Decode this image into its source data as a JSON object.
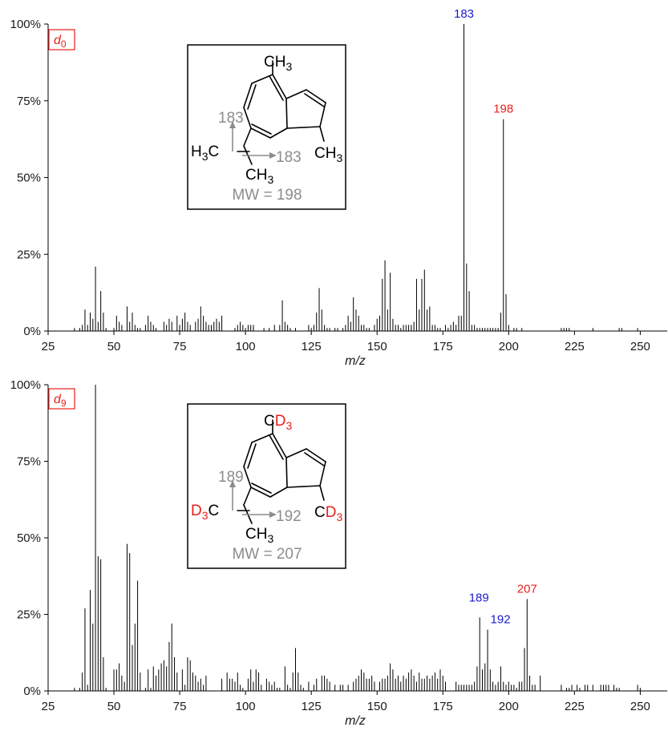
{
  "chart_data": [
    {
      "type": "bar",
      "panel_tag": "d",
      "panel_tag_sub": "0",
      "xlabel": "m/z",
      "xlim": [
        25,
        260
      ],
      "ylim": [
        0,
        100
      ],
      "xticks": [
        "25",
        "50",
        "75",
        "100",
        "125",
        "150",
        "175",
        "200",
        "225",
        "250"
      ],
      "yticks": [
        "0%",
        "25%",
        "50%",
        "75%",
        "100%"
      ],
      "grid": false,
      "peak_labels": [
        {
          "text": "183",
          "x": 183,
          "color": "#1a1ad0"
        },
        {
          "text": "198",
          "x": 198,
          "color": "#e8201c"
        }
      ],
      "points": [
        [
          35,
          1
        ],
        [
          37,
          1
        ],
        [
          38,
          2
        ],
        [
          39,
          7
        ],
        [
          40,
          2
        ],
        [
          41,
          6
        ],
        [
          42,
          4
        ],
        [
          43,
          21
        ],
        [
          44,
          3
        ],
        [
          45,
          13
        ],
        [
          46,
          6
        ],
        [
          47,
          1
        ],
        [
          50,
          1
        ],
        [
          51,
          5
        ],
        [
          52,
          3
        ],
        [
          53,
          2
        ],
        [
          55,
          8
        ],
        [
          56,
          3
        ],
        [
          57,
          6
        ],
        [
          58,
          2
        ],
        [
          59,
          1
        ],
        [
          60,
          1
        ],
        [
          62,
          2
        ],
        [
          63,
          5
        ],
        [
          64,
          3
        ],
        [
          65,
          2
        ],
        [
          66,
          1
        ],
        [
          69,
          3
        ],
        [
          70,
          2
        ],
        [
          71,
          4
        ],
        [
          72,
          3
        ],
        [
          74,
          5
        ],
        [
          75,
          2
        ],
        [
          76,
          4
        ],
        [
          77,
          6
        ],
        [
          78,
          3
        ],
        [
          79,
          2
        ],
        [
          81,
          3
        ],
        [
          82,
          4
        ],
        [
          83,
          8
        ],
        [
          84,
          5
        ],
        [
          85,
          3
        ],
        [
          86,
          2
        ],
        [
          87,
          2
        ],
        [
          88,
          3
        ],
        [
          89,
          4
        ],
        [
          90,
          3
        ],
        [
          91,
          5
        ],
        [
          96,
          1
        ],
        [
          97,
          2
        ],
        [
          98,
          3
        ],
        [
          99,
          2
        ],
        [
          100,
          1
        ],
        [
          101,
          2
        ],
        [
          102,
          2
        ],
        [
          103,
          2
        ],
        [
          107,
          1
        ],
        [
          109,
          1
        ],
        [
          111,
          2
        ],
        [
          113,
          2
        ],
        [
          114,
          10
        ],
        [
          115,
          3
        ],
        [
          116,
          2
        ],
        [
          117,
          1
        ],
        [
          119,
          1
        ],
        [
          124,
          2
        ],
        [
          125,
          1
        ],
        [
          126,
          2
        ],
        [
          127,
          6
        ],
        [
          128,
          14
        ],
        [
          129,
          7
        ],
        [
          130,
          2
        ],
        [
          131,
          1
        ],
        [
          132,
          1
        ],
        [
          134,
          1
        ],
        [
          135,
          1
        ],
        [
          137,
          1
        ],
        [
          138,
          2
        ],
        [
          139,
          5
        ],
        [
          140,
          3
        ],
        [
          141,
          11
        ],
        [
          142,
          7
        ],
        [
          143,
          5
        ],
        [
          144,
          2
        ],
        [
          145,
          2
        ],
        [
          146,
          1
        ],
        [
          147,
          1
        ],
        [
          149,
          2
        ],
        [
          150,
          4
        ],
        [
          151,
          5
        ],
        [
          152,
          17
        ],
        [
          153,
          23
        ],
        [
          154,
          7
        ],
        [
          155,
          19
        ],
        [
          156,
          4
        ],
        [
          157,
          2
        ],
        [
          158,
          2
        ],
        [
          159,
          1
        ],
        [
          160,
          2
        ],
        [
          161,
          2
        ],
        [
          162,
          2
        ],
        [
          163,
          2
        ],
        [
          164,
          3
        ],
        [
          165,
          17
        ],
        [
          166,
          7
        ],
        [
          167,
          17
        ],
        [
          168,
          20
        ],
        [
          169,
          7
        ],
        [
          170,
          8
        ],
        [
          171,
          2
        ],
        [
          172,
          2
        ],
        [
          173,
          1
        ],
        [
          174,
          1
        ],
        [
          176,
          2
        ],
        [
          177,
          1
        ],
        [
          178,
          2
        ],
        [
          179,
          3
        ],
        [
          180,
          2
        ],
        [
          181,
          5
        ],
        [
          182,
          5
        ],
        [
          183,
          100
        ],
        [
          184,
          22
        ],
        [
          185,
          13
        ],
        [
          186,
          2
        ],
        [
          187,
          2
        ],
        [
          188,
          1
        ],
        [
          189,
          1
        ],
        [
          190,
          1
        ],
        [
          191,
          1
        ],
        [
          192,
          1
        ],
        [
          193,
          1
        ],
        [
          194,
          1
        ],
        [
          195,
          1
        ],
        [
          196,
          1
        ],
        [
          197,
          6
        ],
        [
          198,
          69
        ],
        [
          199,
          12
        ],
        [
          200,
          2
        ],
        [
          202,
          1
        ],
        [
          203,
          1
        ],
        [
          205,
          1
        ],
        [
          220,
          1
        ],
        [
          221,
          1
        ],
        [
          222,
          1
        ],
        [
          223,
          1
        ],
        [
          232,
          1
        ],
        [
          242,
          1
        ],
        [
          243,
          1
        ],
        [
          249,
          1
        ]
      ],
      "structure": {
        "formula_top": "CH",
        "formula_top_sub": "3",
        "left_group": "H",
        "left_group_sub": "3",
        "left_group_suffix": "C",
        "bottom_group": "CH",
        "bottom_group_sub": "3",
        "right_group": "CH",
        "right_group_sub": "3",
        "frag_up": "183",
        "frag_right": "183",
        "mw": "MW = 198"
      }
    },
    {
      "type": "bar",
      "panel_tag": "d",
      "panel_tag_sub": "9",
      "xlabel": "m/z",
      "xlim": [
        25,
        260
      ],
      "ylim": [
        0,
        100
      ],
      "xticks": [
        "25",
        "50",
        "75",
        "100",
        "125",
        "150",
        "175",
        "200",
        "225",
        "250"
      ],
      "yticks": [
        "0%",
        "25%",
        "50%",
        "75%",
        "100%"
      ],
      "grid": false,
      "peak_labels": [
        {
          "text": "189",
          "x": 189,
          "color": "#1a1ad0"
        },
        {
          "text": "192",
          "x": 192,
          "color": "#1a1ad0"
        },
        {
          "text": "207",
          "x": 207,
          "color": "#e8201c"
        }
      ],
      "points": [
        [
          35,
          1
        ],
        [
          37,
          1
        ],
        [
          38,
          6
        ],
        [
          39,
          27
        ],
        [
          40,
          2
        ],
        [
          41,
          33
        ],
        [
          42,
          22
        ],
        [
          43,
          100
        ],
        [
          44,
          44
        ],
        [
          45,
          43
        ],
        [
          46,
          11
        ],
        [
          47,
          1
        ],
        [
          50,
          7
        ],
        [
          51,
          7
        ],
        [
          52,
          9
        ],
        [
          53,
          5
        ],
        [
          54,
          3
        ],
        [
          55,
          48
        ],
        [
          56,
          45
        ],
        [
          57,
          15
        ],
        [
          58,
          22
        ],
        [
          59,
          36
        ],
        [
          60,
          6
        ],
        [
          62,
          1
        ],
        [
          63,
          7
        ],
        [
          64,
          1
        ],
        [
          65,
          8
        ],
        [
          66,
          5
        ],
        [
          67,
          7
        ],
        [
          68,
          9
        ],
        [
          69,
          10
        ],
        [
          70,
          8
        ],
        [
          71,
          16
        ],
        [
          72,
          22
        ],
        [
          73,
          11
        ],
        [
          74,
          6
        ],
        [
          76,
          7
        ],
        [
          77,
          2
        ],
        [
          78,
          11
        ],
        [
          79,
          10
        ],
        [
          80,
          6
        ],
        [
          81,
          5
        ],
        [
          82,
          3
        ],
        [
          83,
          4
        ],
        [
          84,
          2
        ],
        [
          85,
          5
        ],
        [
          91,
          4
        ],
        [
          93,
          6
        ],
        [
          94,
          4
        ],
        [
          95,
          4
        ],
        [
          96,
          3
        ],
        [
          97,
          6
        ],
        [
          98,
          2
        ],
        [
          99,
          1
        ],
        [
          101,
          4
        ],
        [
          102,
          7
        ],
        [
          103,
          3
        ],
        [
          104,
          7
        ],
        [
          105,
          6
        ],
        [
          106,
          2
        ],
        [
          108,
          4
        ],
        [
          109,
          3
        ],
        [
          110,
          2
        ],
        [
          111,
          3
        ],
        [
          112,
          1
        ],
        [
          113,
          1
        ],
        [
          115,
          8
        ],
        [
          116,
          2
        ],
        [
          117,
          1
        ],
        [
          118,
          6
        ],
        [
          119,
          14
        ],
        [
          120,
          6
        ],
        [
          121,
          2
        ],
        [
          122,
          1
        ],
        [
          124,
          3
        ],
        [
          126,
          2
        ],
        [
          127,
          4
        ],
        [
          129,
          5
        ],
        [
          130,
          5
        ],
        [
          131,
          4
        ],
        [
          132,
          3
        ],
        [
          134,
          2
        ],
        [
          136,
          2
        ],
        [
          137,
          2
        ],
        [
          139,
          2
        ],
        [
          141,
          3
        ],
        [
          142,
          4
        ],
        [
          143,
          5
        ],
        [
          144,
          7
        ],
        [
          145,
          6
        ],
        [
          146,
          4
        ],
        [
          147,
          4
        ],
        [
          148,
          5
        ],
        [
          149,
          3
        ],
        [
          151,
          3
        ],
        [
          152,
          4
        ],
        [
          153,
          4
        ],
        [
          154,
          5
        ],
        [
          155,
          9
        ],
        [
          156,
          7
        ],
        [
          157,
          4
        ],
        [
          158,
          5
        ],
        [
          159,
          3
        ],
        [
          160,
          5
        ],
        [
          161,
          4
        ],
        [
          162,
          6
        ],
        [
          163,
          7
        ],
        [
          164,
          5
        ],
        [
          165,
          3
        ],
        [
          166,
          6
        ],
        [
          167,
          4
        ],
        [
          168,
          4
        ],
        [
          169,
          5
        ],
        [
          170,
          4
        ],
        [
          171,
          5
        ],
        [
          172,
          6
        ],
        [
          173,
          4
        ],
        [
          174,
          7
        ],
        [
          175,
          5
        ],
        [
          176,
          3
        ],
        [
          180,
          3
        ],
        [
          181,
          2
        ],
        [
          182,
          2
        ],
        [
          183,
          2
        ],
        [
          184,
          2
        ],
        [
          185,
          2
        ],
        [
          186,
          2
        ],
        [
          187,
          3
        ],
        [
          188,
          8
        ],
        [
          189,
          24
        ],
        [
          190,
          7
        ],
        [
          191,
          9
        ],
        [
          192,
          20
        ],
        [
          193,
          7
        ],
        [
          194,
          3
        ],
        [
          195,
          2
        ],
        [
          196,
          3
        ],
        [
          197,
          8
        ],
        [
          198,
          3
        ],
        [
          199,
          2
        ],
        [
          200,
          3
        ],
        [
          201,
          2
        ],
        [
          202,
          2
        ],
        [
          203,
          1
        ],
        [
          204,
          3
        ],
        [
          205,
          3
        ],
        [
          206,
          14
        ],
        [
          207,
          30
        ],
        [
          208,
          5
        ],
        [
          209,
          2
        ],
        [
          210,
          2
        ],
        [
          212,
          5
        ],
        [
          220,
          2
        ],
        [
          222,
          1
        ],
        [
          223,
          1
        ],
        [
          224,
          2
        ],
        [
          226,
          2
        ],
        [
          227,
          1
        ],
        [
          229,
          2
        ],
        [
          230,
          2
        ],
        [
          232,
          2
        ],
        [
          235,
          2
        ],
        [
          236,
          2
        ],
        [
          237,
          2
        ],
        [
          238,
          2
        ],
        [
          240,
          2
        ],
        [
          241,
          1
        ],
        [
          242,
          1
        ],
        [
          249,
          2
        ],
        [
          250,
          1
        ]
      ],
      "structure": {
        "formula_top": "C",
        "formula_top_red": "D",
        "formula_top_sub": "3",
        "left_group": "D",
        "left_group_sub": "3",
        "left_group_suffix": "C",
        "bottom_group": "CH",
        "bottom_group_sub": "3",
        "right_group": "C",
        "right_group_red": "D",
        "right_group_sub": "3",
        "frag_up": "189",
        "frag_right": "192",
        "mw": "MW = 207"
      }
    }
  ]
}
